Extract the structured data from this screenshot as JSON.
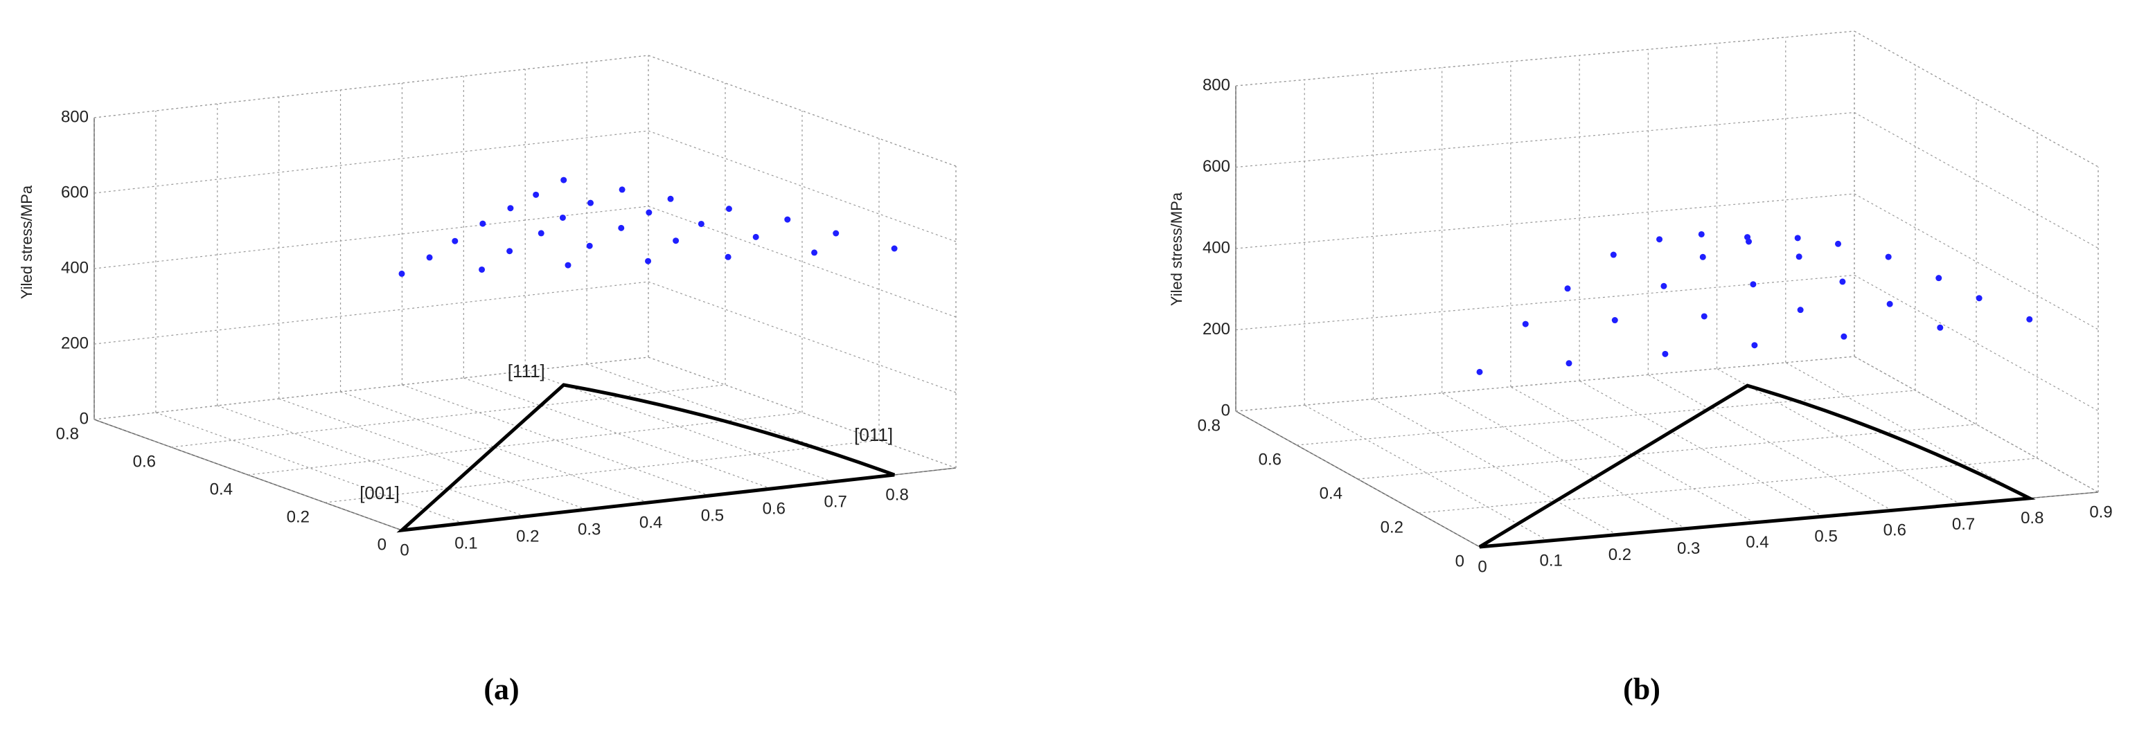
{
  "chart_data": [
    {
      "type": "scatter3d",
      "zlabel": "Yiled stress/MPa",
      "caption": "(a)",
      "color": "#1f1fff",
      "x": [
        0,
        0.13,
        0.27,
        0.4,
        0.53,
        0.67,
        0.8,
        0.12,
        0.25,
        0.38,
        0.52,
        0.65,
        0.78,
        0.23,
        0.37,
        0.5,
        0.63,
        0.77,
        0.35,
        0.48,
        0.62,
        0.75,
        0.47,
        0.6,
        0.73,
        0.58,
        0.72,
        0.7
      ],
      "y": [
        0,
        0,
        0,
        0,
        0,
        0,
        0,
        0.12,
        0.12,
        0.12,
        0.12,
        0.12,
        0.12,
        0.23,
        0.23,
        0.23,
        0.23,
        0.23,
        0.35,
        0.35,
        0.35,
        0.35,
        0.47,
        0.47,
        0.47,
        0.58,
        0.58,
        0.7
      ],
      "z": [
        680,
        667,
        653,
        640,
        627,
        613,
        600,
        657,
        650,
        640,
        628,
        614,
        600,
        640,
        635,
        625,
        612,
        598,
        620,
        612,
        600,
        586,
        595,
        585,
        572,
        570,
        558,
        543
      ],
      "triangle": {
        "x": [
          0,
          0.8,
          0.7
        ],
        "y": [
          0,
          0,
          0.7
        ]
      },
      "annotations": [
        "[001]",
        "[011]",
        "[111]"
      ],
      "xlim": [
        0,
        0.9
      ],
      "xticks": [
        0,
        0.1,
        0.2,
        0.3,
        0.4,
        0.5,
        0.6,
        0.7,
        0.8
      ],
      "ylim": [
        0,
        0.8
      ],
      "yticks": [
        0,
        0.2,
        0.4,
        0.6,
        0.8
      ],
      "zlim": [
        0,
        800
      ],
      "zticks": [
        0,
        200,
        400,
        600,
        800
      ],
      "grid": true
    },
    {
      "type": "scatter3d",
      "zlabel": "Yiled stress/MPa",
      "caption": "(b)",
      "color": "#1f1fff",
      "x": [
        0,
        0.13,
        0.27,
        0.4,
        0.53,
        0.67,
        0.8,
        0.12,
        0.25,
        0.38,
        0.52,
        0.65,
        0.78,
        0.23,
        0.37,
        0.5,
        0.63,
        0.77,
        0.35,
        0.48,
        0.62,
        0.75,
        0.47,
        0.6,
        0.73,
        0.58,
        0.72,
        0.7
      ],
      "y": [
        0,
        0,
        0,
        0,
        0,
        0,
        0,
        0.12,
        0.12,
        0.12,
        0.12,
        0.12,
        0.12,
        0.23,
        0.23,
        0.23,
        0.23,
        0.23,
        0.35,
        0.35,
        0.35,
        0.35,
        0.47,
        0.47,
        0.47,
        0.58,
        0.58,
        0.7
      ],
      "z": [
        430,
        432,
        434,
        436,
        438,
        439,
        440,
        480,
        470,
        460,
        455,
        450,
        445,
        505,
        490,
        475,
        462,
        450,
        520,
        495,
        475,
        455,
        490,
        465,
        440,
        440,
        410,
        365
      ],
      "triangle": {
        "x": [
          0,
          0.8,
          0.7
        ],
        "y": [
          0,
          0,
          0.7
        ]
      },
      "xlim": [
        0,
        0.9
      ],
      "xticks": [
        0,
        0.1,
        0.2,
        0.3,
        0.4,
        0.5,
        0.6,
        0.7,
        0.8,
        0.9
      ],
      "ylim": [
        0,
        0.8
      ],
      "yticks": [
        0,
        0.2,
        0.4,
        0.6,
        0.8
      ],
      "zlim": [
        0,
        800
      ],
      "zticks": [
        0,
        200,
        400,
        600,
        800
      ],
      "grid": true
    }
  ]
}
